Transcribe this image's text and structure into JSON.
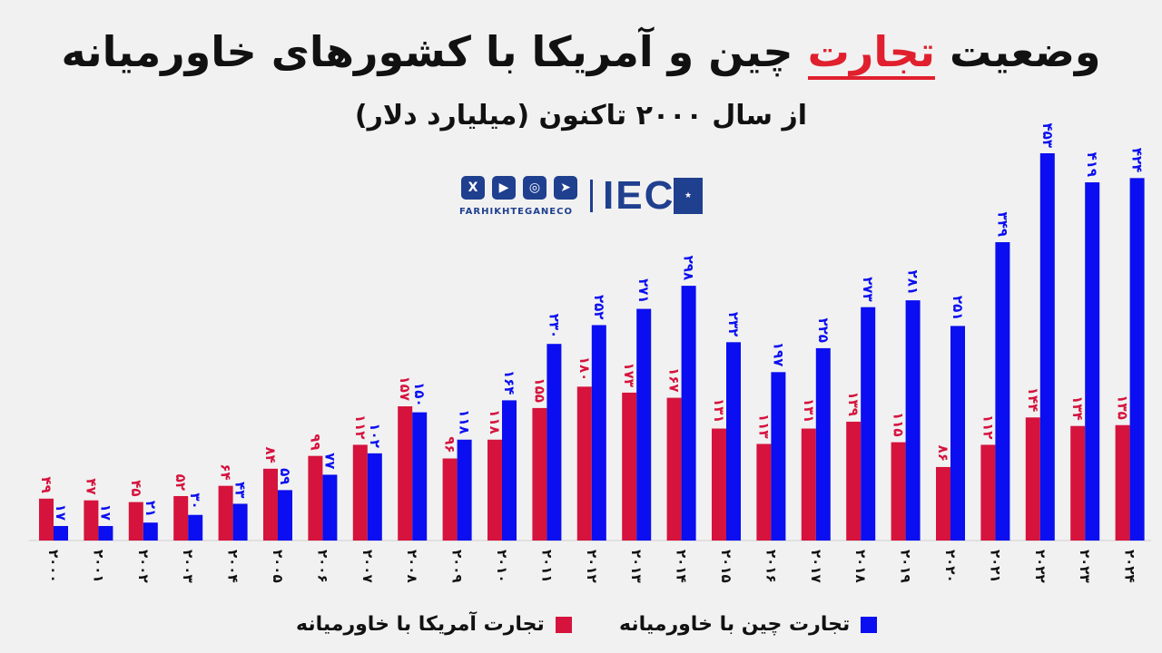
{
  "title": {
    "part1": "وضعیت ",
    "highlight": "تجارت",
    "part2": " چین و آمریکا با کشورهای خاورمیانه"
  },
  "subtitle": "از سال ۲۰۰۰ تاکنون (میلیارد دلار)",
  "brand": {
    "name": "FARHIKHTEGANECO",
    "logo_text": "IEC",
    "social_icons": [
      "x-icon",
      "youtube-icon",
      "instagram-icon",
      "telegram-icon"
    ]
  },
  "legend": {
    "us_label": "تجارت آمریکا با خاورمیانه",
    "china_label": "تجارت چین با خاورمیانه"
  },
  "colors": {
    "us": "#d5133d",
    "china": "#0a0ef0",
    "title_highlight": "#e0202e"
  },
  "chart_data": {
    "type": "bar",
    "categories": [
      "۲۰۰۰",
      "۲۰۰۱",
      "۲۰۰۲",
      "۲۰۰۳",
      "۲۰۰۴",
      "۲۰۰۵",
      "۲۰۰۶",
      "۲۰۰۷",
      "۲۰۰۸",
      "۲۰۰۹",
      "۲۰۱۰",
      "۲۰۱۱",
      "۲۰۱۲",
      "۲۰۱۳",
      "۲۰۱۴",
      "۲۰۱۵",
      "۲۰۱۶",
      "۲۰۱۷",
      "۲۰۱۸",
      "۲۰۱۹",
      "۲۰۲۰",
      "۲۰۲۱",
      "۲۰۲۲",
      "۲۰۲۳",
      "۲۰۲۴"
    ],
    "series": [
      {
        "name": "تجارت آمریکا با خاورمیانه",
        "values": [
          49,
          47,
          45,
          52,
          64,
          84,
          99,
          112,
          157,
          96,
          118,
          155,
          180,
          173,
          167,
          131,
          113,
          131,
          139,
          115,
          86,
          112,
          144,
          134,
          135
        ],
        "labels": [
          "۴۹",
          "۴۷",
          "۴۵",
          "۵۲",
          "۶۴",
          "۸۴",
          "۹۹",
          "۱۱۲",
          "۱۵۷",
          "۹۶",
          "۱۱۸",
          "۱۵۵",
          "۱۸۰",
          "۱۷۳",
          "۱۶۷",
          "۱۳۱",
          "۱۱۳",
          "۱۳۱",
          "۱۳۹",
          "۱۱۵",
          "۸۶",
          "۱۱۲",
          "۱۴۴",
          "۱۳۴",
          "۱۳۵"
        ]
      },
      {
        "name": "تجارت چین با خاورمیانه",
        "values": [
          17,
          17,
          21,
          30,
          43,
          59,
          77,
          102,
          150,
          118,
          164,
          230,
          252,
          271,
          298,
          232,
          197,
          225,
          273,
          281,
          251,
          349,
          453,
          419,
          424
        ],
        "labels": [
          "۱۷",
          "۱۷",
          "۲۱",
          "۳۰",
          "۴۳",
          "۵۹",
          "۷۷",
          "۱۰۲",
          "۱۵۰",
          "۱۱۸",
          "۱۶۴",
          "۲۳۰",
          "۲۵۲",
          "۲۷۱",
          "۲۹۸",
          "۲۳۲",
          "۱۹۷",
          "۲۲۵",
          "۲۷۳",
          "۲۸۱",
          "۲۵۱",
          "۳۴۹",
          "۴۵۳",
          "۴۱۹",
          "۴۲۴"
        ]
      }
    ],
    "ylim": [
      0,
      453
    ],
    "grid": false,
    "legend_position": "bottom"
  }
}
